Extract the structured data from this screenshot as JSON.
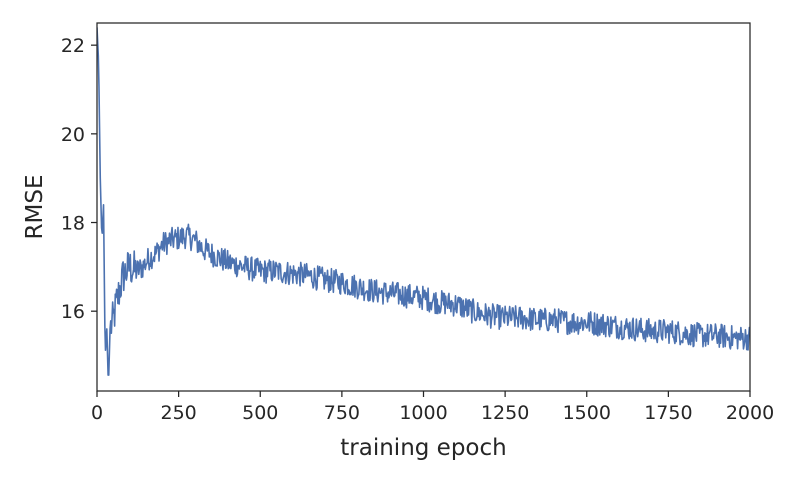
{
  "chart_data": {
    "type": "line",
    "title": "",
    "xlabel": "training epoch",
    "ylabel": "RMSE",
    "xlim": [
      0,
      2000
    ],
    "ylim": [
      14.2,
      22.5
    ],
    "xticks": [
      0,
      250,
      500,
      750,
      1000,
      1250,
      1500,
      1750,
      2000
    ],
    "xtick_labels": [
      "0",
      "250",
      "500",
      "750",
      "1000",
      "1250",
      "1500",
      "1750",
      "2000"
    ],
    "yticks": [
      16,
      18,
      20,
      22
    ],
    "ytick_labels": [
      "16",
      "18",
      "20",
      "22"
    ],
    "grid": false,
    "legend": "none",
    "series": [
      {
        "color": "#4c72b0",
        "x": [
          0,
          5,
          10,
          15,
          20,
          25,
          30,
          35,
          40,
          50,
          60,
          70,
          80,
          90,
          100,
          120,
          140,
          160,
          180,
          200,
          225,
          250,
          275,
          300,
          325,
          350,
          375,
          400,
          425,
          450,
          475,
          500,
          550,
          600,
          650,
          700,
          750,
          800,
          850,
          900,
          950,
          1000,
          1050,
          1100,
          1150,
          1200,
          1250,
          1300,
          1350,
          1400,
          1450,
          1500,
          1550,
          1600,
          1650,
          1700,
          1750,
          1800,
          1850,
          1900,
          1950,
          2000
        ],
        "values": [
          22.4,
          21.6,
          19.0,
          17.6,
          18.4,
          15.0,
          15.6,
          14.3,
          15.6,
          15.8,
          16.2,
          16.5,
          16.8,
          16.9,
          17.0,
          16.9,
          17.0,
          17.2,
          17.3,
          17.5,
          17.6,
          17.65,
          17.7,
          17.6,
          17.4,
          17.3,
          17.2,
          17.1,
          17.05,
          17.0,
          16.95,
          16.9,
          16.9,
          16.85,
          16.8,
          16.7,
          16.65,
          16.55,
          16.45,
          16.4,
          16.35,
          16.3,
          16.2,
          16.15,
          16.0,
          15.9,
          15.85,
          15.85,
          15.8,
          15.8,
          15.75,
          15.75,
          15.7,
          15.65,
          15.6,
          15.55,
          15.55,
          15.5,
          15.45,
          15.45,
          15.4,
          15.4
        ]
      }
    ]
  }
}
